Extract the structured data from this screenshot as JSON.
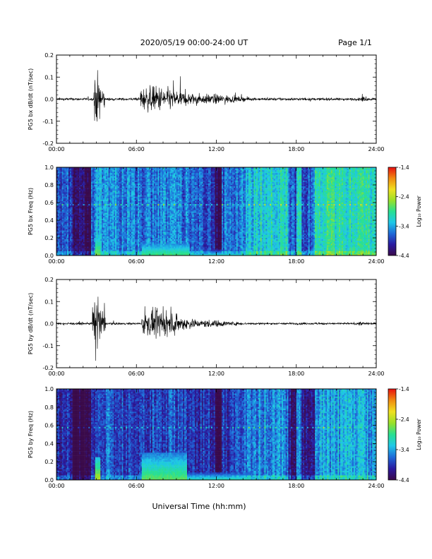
{
  "header": {
    "title": "2020/05/19  00:00-24:00 UT",
    "page": "Page 1/1"
  },
  "footer": {
    "xlabel": "Universal Time (hh:mm)"
  },
  "colorbar_ticks": [
    "-1.4",
    "-2.4",
    "-3.4",
    "-4.4"
  ],
  "colorbar_label": "Log₁₀ Power",
  "colorbar_colors": [
    "#3a0a4a",
    "#2a1aa0",
    "#1e6ad8",
    "#1ec8e8",
    "#28e090",
    "#9ae028",
    "#f0e020",
    "#f08a10",
    "#e81010"
  ],
  "chart_data": [
    {
      "type": "line",
      "ylabel": "PG5 bx dB/dt (nT/sec)",
      "xlim": [
        "00:00",
        "24:00"
      ],
      "ylim": [
        -0.2,
        0.2
      ],
      "x_ticks": [
        "00:00",
        "06:00",
        "12:00",
        "18:00",
        "24:00"
      ],
      "y_ticks": [
        "0.2",
        "0.1",
        "0.0",
        "-0.1",
        "-0.2"
      ],
      "activity": [
        {
          "start_h": 2.8,
          "end_h": 3.6,
          "amplitude": 0.2
        },
        {
          "start_h": 6.3,
          "end_h": 10.8,
          "amplitude": 0.1
        },
        {
          "start_h": 10.8,
          "end_h": 14.5,
          "amplitude": 0.04
        },
        {
          "start_h": 22.8,
          "end_h": 23.3,
          "amplitude": 0.03
        }
      ],
      "baseline_amplitude": 0.01
    },
    {
      "type": "heatmap",
      "ylabel": "PG5 bx Freq (Hz)",
      "xlim": [
        "00:00",
        "24:00"
      ],
      "ylim": [
        0.0,
        1.0
      ],
      "x_ticks": [
        "00:00",
        "06:00",
        "12:00",
        "18:00",
        "24:00"
      ],
      "y_ticks": [
        "1.0",
        "0.8",
        "0.6",
        "0.4",
        "0.2",
        "0.0"
      ],
      "colorbar_range": [
        -4.4,
        -1.4
      ],
      "background_power_by_hour": [
        {
          "h": 0,
          "p": -3.8
        },
        {
          "h": 2.8,
          "p": -3.7
        },
        {
          "h": 3.0,
          "p": -3.5
        },
        {
          "h": 6,
          "p": -3.6
        },
        {
          "h": 9,
          "p": -3.6
        },
        {
          "h": 12,
          "p": -3.8
        },
        {
          "h": 14,
          "p": -3.5
        },
        {
          "h": 15.5,
          "p": -3.1
        },
        {
          "h": 18,
          "p": -3.2
        },
        {
          "h": 19.5,
          "p": -3.0
        },
        {
          "h": 22,
          "p": -3.0
        },
        {
          "h": 24,
          "p": -3.1
        }
      ],
      "quiet_bands": [
        {
          "start_h": 1.2,
          "end_h": 2.6
        },
        {
          "start_h": 11.9,
          "end_h": 12.4
        },
        {
          "start_h": 17.4,
          "end_h": 18.0
        },
        {
          "start_h": 18.4,
          "end_h": 19.4
        }
      ],
      "low_freq_enhancement": [
        {
          "start_h": 2.9,
          "end_h": 3.3,
          "top_hz": 0.25,
          "p": -2.6
        },
        {
          "start_h": 6.4,
          "end_h": 10.0,
          "top_hz": 0.15,
          "p": -2.8
        },
        {
          "start_h": 10.0,
          "end_h": 14.5,
          "top_hz": 0.06,
          "p": -3.1
        }
      ]
    },
    {
      "type": "line",
      "ylabel": "PG5 by dB/dt (nT/sec)",
      "xlim": [
        "00:00",
        "24:00"
      ],
      "ylim": [
        -0.2,
        0.2
      ],
      "x_ticks": [
        "00:00",
        "06:00",
        "12:00",
        "18:00",
        "24:00"
      ],
      "y_ticks": [
        "0.2",
        "0.1",
        "0.0",
        "-0.1",
        "-0.2"
      ],
      "activity": [
        {
          "start_h": 2.7,
          "end_h": 3.7,
          "amplitude": 0.2
        },
        {
          "start_h": 6.4,
          "end_h": 10.5,
          "amplitude": 0.1
        },
        {
          "start_h": 10.5,
          "end_h": 14.0,
          "amplitude": 0.03
        },
        {
          "start_h": 22.7,
          "end_h": 23.2,
          "amplitude": 0.02
        }
      ],
      "baseline_amplitude": 0.008
    },
    {
      "type": "heatmap",
      "ylabel": "PG5 by Freq (Hz)",
      "xlim": [
        "00:00",
        "24:00"
      ],
      "ylim": [
        0.0,
        1.0
      ],
      "x_ticks": [
        "00:00",
        "06:00",
        "12:00",
        "18:00",
        "24:00"
      ],
      "y_ticks": [
        "1.0",
        "0.8",
        "0.6",
        "0.4",
        "0.2",
        "0.0"
      ],
      "colorbar_range": [
        -4.4,
        -1.4
      ],
      "background_power_by_hour": [
        {
          "h": 0,
          "p": -4.0
        },
        {
          "h": 2.8,
          "p": -3.9
        },
        {
          "h": 3.0,
          "p": -3.7
        },
        {
          "h": 6,
          "p": -3.8
        },
        {
          "h": 9,
          "p": -3.8
        },
        {
          "h": 12,
          "p": -4.0
        },
        {
          "h": 14,
          "p": -3.8
        },
        {
          "h": 15.5,
          "p": -3.5
        },
        {
          "h": 18,
          "p": -3.6
        },
        {
          "h": 19.5,
          "p": -3.4
        },
        {
          "h": 22,
          "p": -3.4
        },
        {
          "h": 24,
          "p": -3.5
        }
      ],
      "quiet_bands": [
        {
          "start_h": 1.2,
          "end_h": 2.6
        },
        {
          "start_h": 11.9,
          "end_h": 12.4
        },
        {
          "start_h": 17.4,
          "end_h": 18.0
        },
        {
          "start_h": 18.4,
          "end_h": 19.4
        }
      ],
      "low_freq_enhancement": [
        {
          "start_h": 2.9,
          "end_h": 3.3,
          "top_hz": 0.25,
          "p": -2.4
        },
        {
          "start_h": 6.4,
          "end_h": 9.8,
          "top_hz": 0.3,
          "p": -2.7
        },
        {
          "start_h": 9.8,
          "end_h": 14.5,
          "top_hz": 0.08,
          "p": -3.0
        }
      ]
    }
  ]
}
